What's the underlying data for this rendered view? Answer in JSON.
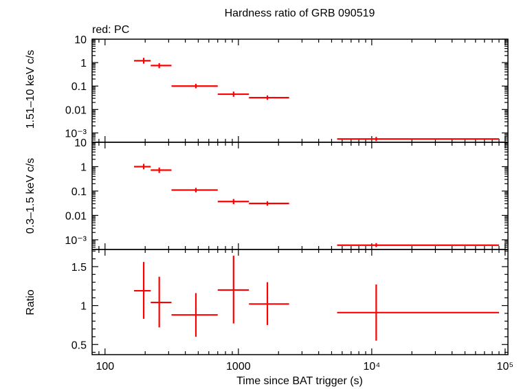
{
  "title": "Hardness ratio of GRB 090519",
  "subtitle": "red: PC",
  "xlabel": "Time since BAT trigger (s)",
  "colors": {
    "series": "#ff0000",
    "axes": "#000000"
  },
  "chart_data": [
    {
      "type": "scatter",
      "ylabel": "1.51–10 keV c/s",
      "xscale": "log",
      "yscale": "log",
      "xlim": [
        80,
        105000
      ],
      "ylim": [
        0.0004,
        10
      ],
      "yticks": [
        "10",
        "1",
        "0.1",
        "0.01",
        "10⁻³"
      ],
      "series": [
        {
          "x": [
            195,
            255,
            480,
            920,
            1650,
            10800
          ],
          "xlo": [
            165,
            220,
            315,
            700,
            1200,
            5500
          ],
          "xhi": [
            220,
            315,
            700,
            1200,
            2400,
            90000
          ],
          "y": [
            1.2,
            0.75,
            0.1,
            0.045,
            0.032,
            0.00055
          ],
          "ylo": [
            0.9,
            0.58,
            0.08,
            0.035,
            0.026,
            0.00045
          ],
          "yhi": [
            1.6,
            0.95,
            0.125,
            0.058,
            0.04,
            0.00068
          ]
        }
      ]
    },
    {
      "type": "scatter",
      "ylabel": "0.3–1.5 keV c/s",
      "xscale": "log",
      "yscale": "log",
      "xlim": [
        80,
        105000
      ],
      "ylim": [
        0.0004,
        10
      ],
      "yticks": [
        "1",
        "0.1",
        "0.01",
        "10⁻³"
      ],
      "series": [
        {
          "x": [
            195,
            255,
            480,
            920,
            1650,
            10800
          ],
          "xlo": [
            165,
            220,
            315,
            700,
            1200,
            5500
          ],
          "xhi": [
            220,
            315,
            700,
            1200,
            2400,
            90000
          ],
          "y": [
            1.0,
            0.72,
            0.11,
            0.037,
            0.031,
            0.0006
          ],
          "ylo": [
            0.78,
            0.55,
            0.088,
            0.029,
            0.025,
            0.0005
          ],
          "yhi": [
            1.3,
            0.92,
            0.135,
            0.047,
            0.038,
            0.00073
          ]
        }
      ]
    },
    {
      "type": "scatter",
      "ylabel": "Ratio",
      "xscale": "log",
      "yscale": "linear",
      "xlim": [
        80,
        105000
      ],
      "ylim": [
        0.37,
        1.72
      ],
      "yticks": [
        "1.5",
        "1",
        "0.5"
      ],
      "series": [
        {
          "x": [
            195,
            255,
            480,
            920,
            1650,
            10800
          ],
          "xlo": [
            165,
            220,
            315,
            700,
            1200,
            5500
          ],
          "xhi": [
            220,
            315,
            700,
            1200,
            2400,
            90000
          ],
          "y": [
            1.19,
            1.04,
            0.88,
            1.2,
            1.02,
            0.91
          ],
          "ylo": [
            0.83,
            0.72,
            0.6,
            0.77,
            0.75,
            0.55
          ],
          "yhi": [
            1.56,
            1.37,
            1.16,
            1.64,
            1.3,
            1.27
          ]
        }
      ]
    }
  ],
  "xticks": [
    "100",
    "1000",
    "10⁴",
    "10⁵"
  ]
}
